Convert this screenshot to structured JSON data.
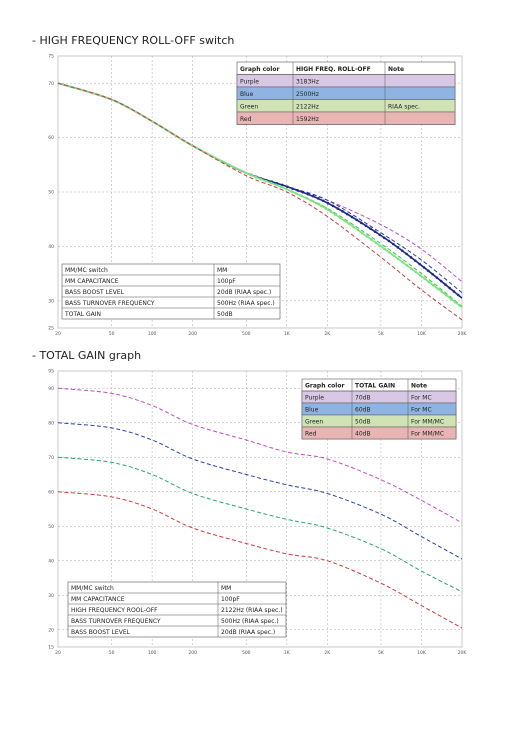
{
  "sections": [
    {
      "title": "- HIGH FREQUENCY ROLL-OFF switch"
    },
    {
      "title": "- TOTAL GAIN graph"
    }
  ],
  "chart_data": [
    {
      "type": "line",
      "xscale": "log",
      "xlim": [
        20,
        20000
      ],
      "ylim": [
        25,
        75
      ],
      "yticks": [
        25,
        30,
        40,
        50,
        60,
        70,
        75
      ],
      "xtick_labels": [
        "20",
        "50",
        "100",
        "200",
        "500",
        "1K",
        "2K",
        "5K",
        "10K",
        "20K"
      ],
      "xtick_values": [
        20,
        50,
        100,
        200,
        500,
        1000,
        2000,
        5000,
        10000,
        20000
      ],
      "grid": true,
      "legend_position": "top-right",
      "legend_table": {
        "headers": [
          "Graph color",
          "HIGH FREQ. ROLL-OFF",
          "Note"
        ],
        "rows": [
          {
            "color_name": "Purple",
            "value": "3183Hz",
            "note": "",
            "bg": "#d9c8e4"
          },
          {
            "color_name": "Blue",
            "value": "2500Hz",
            "note": "",
            "bg": "#8fb4e3"
          },
          {
            "color_name": "Green",
            "value": "2122Hz",
            "note": "RIAA spec.",
            "bg": "#cfe3b5"
          },
          {
            "color_name": "Red",
            "value": "1592Hz",
            "note": "",
            "bg": "#e8b4b4"
          }
        ]
      },
      "info_table": [
        [
          "MM/MC switch",
          "MM"
        ],
        [
          "MM CAPACITANCE",
          "100pF"
        ],
        [
          "BASS BOOST LEVEL",
          "20dB (RIAA spec.)"
        ],
        [
          "BASS TURNOVER FREQUENCY",
          "500Hz (RIAA spec.)"
        ],
        [
          "TOTAL GAIN",
          "50dB"
        ]
      ],
      "series": [
        {
          "color": "#c04ac8",
          "style": "dashed",
          "points": [
            [
              20,
              70
            ],
            [
              50,
              67
            ],
            [
              100,
              63
            ],
            [
              200,
              58.5
            ],
            [
              500,
              53.5
            ],
            [
              1000,
              51
            ],
            [
              2000,
              48.5
            ],
            [
              5000,
              44
            ],
            [
              10000,
              39.5
            ],
            [
              20000,
              33.5
            ]
          ]
        },
        {
          "color": "#2a3ea8",
          "style": "dashed",
          "points": [
            [
              20,
              70
            ],
            [
              50,
              67
            ],
            [
              100,
              63
            ],
            [
              200,
              58.5
            ],
            [
              500,
              53.5
            ],
            [
              1000,
              51
            ],
            [
              2000,
              48.5
            ],
            [
              5000,
              42.5
            ],
            [
              10000,
              37.5
            ],
            [
              20000,
              31.5
            ]
          ]
        },
        {
          "color": "#1f2a8a",
          "style": "solid-dots",
          "points": [
            [
              20,
              70
            ],
            [
              50,
              67
            ],
            [
              100,
              63
            ],
            [
              200,
              58.5
            ],
            [
              500,
              53.5
            ],
            [
              1000,
              51
            ],
            [
              2000,
              48
            ],
            [
              5000,
              42
            ],
            [
              10000,
              36.5
            ],
            [
              20000,
              30.5
            ]
          ]
        },
        {
          "color": "#3cbd55",
          "style": "dashed",
          "points": [
            [
              20,
              70
            ],
            [
              50,
              67
            ],
            [
              100,
              63
            ],
            [
              200,
              58.5
            ],
            [
              500,
              53.5
            ],
            [
              1000,
              50.5
            ],
            [
              2000,
              47
            ],
            [
              5000,
              40.5
            ],
            [
              10000,
              35
            ],
            [
              20000,
              29
            ]
          ]
        },
        {
          "color": "#7ee37e",
          "style": "solid-dots",
          "points": [
            [
              20,
              70
            ],
            [
              50,
              67
            ],
            [
              100,
              63
            ],
            [
              200,
              58.5
            ],
            [
              500,
              53.5
            ],
            [
              1000,
              50.5
            ],
            [
              2000,
              46.8
            ],
            [
              5000,
              40
            ],
            [
              10000,
              34.5
            ],
            [
              20000,
              28.8
            ]
          ]
        },
        {
          "color": "#d03a3a",
          "style": "dashed",
          "points": [
            [
              20,
              70
            ],
            [
              50,
              67
            ],
            [
              100,
              63
            ],
            [
              200,
              58.5
            ],
            [
              500,
              53
            ],
            [
              1000,
              50
            ],
            [
              2000,
              45.5
            ],
            [
              5000,
              38
            ],
            [
              10000,
              32
            ],
            [
              20000,
              26.5
            ]
          ]
        }
      ]
    },
    {
      "type": "line",
      "xscale": "log",
      "xlim": [
        20,
        20000
      ],
      "ylim": [
        15,
        95
      ],
      "yticks": [
        15,
        20,
        30,
        40,
        50,
        60,
        70,
        80,
        90,
        95
      ],
      "xtick_labels": [
        "20",
        "50",
        "100",
        "200",
        "500",
        "1K",
        "2K",
        "5K",
        "10K",
        "20K"
      ],
      "xtick_values": [
        20,
        50,
        100,
        200,
        500,
        1000,
        2000,
        5000,
        10000,
        20000
      ],
      "grid": true,
      "legend_position": "top-right",
      "legend_table": {
        "headers": [
          "Graph color",
          "TOTAL GAIN",
          "Note"
        ],
        "rows": [
          {
            "color_name": "Purple",
            "value": "70dB",
            "note": "For MC",
            "bg": "#d9c8e4"
          },
          {
            "color_name": "Blue",
            "value": "60dB",
            "note": "For MC",
            "bg": "#8fb4e3"
          },
          {
            "color_name": "Green",
            "value": "50dB",
            "note": "For MM/MC",
            "bg": "#cfe3b5"
          },
          {
            "color_name": "Red",
            "value": "40dB",
            "note": "For MM/MC",
            "bg": "#e8b4b4"
          }
        ]
      },
      "info_table": [
        [
          "MM/MC switch",
          "MM"
        ],
        [
          "MM CAPACITANCE",
          "100pF"
        ],
        [
          "HIGH FREQUENCY ROOL-OFF",
          "2122Hz (RIAA spec.)"
        ],
        [
          "BASS TURNOVER FREQUENCY",
          "500Hz (RIAA spec.)"
        ],
        [
          "BASS BOOST LEVEL",
          "20dB (RIAA spec.)"
        ]
      ],
      "series": [
        {
          "color": "#c04ac8",
          "style": "dashed",
          "points": [
            [
              20,
              90
            ],
            [
              50,
              88.5
            ],
            [
              100,
              85
            ],
            [
              200,
              79.5
            ],
            [
              500,
              75
            ],
            [
              1000,
              71.5
            ],
            [
              2000,
              69.5
            ],
            [
              5000,
              63.5
            ],
            [
              10000,
              57.5
            ],
            [
              20000,
              51
            ]
          ]
        },
        {
          "color": "#2a3ea8",
          "style": "dashed",
          "points": [
            [
              20,
              80
            ],
            [
              50,
              78.5
            ],
            [
              100,
              75
            ],
            [
              200,
              69.5
            ],
            [
              500,
              65
            ],
            [
              1000,
              62
            ],
            [
              2000,
              59.5
            ],
            [
              5000,
              53.5
            ],
            [
              10000,
              47
            ],
            [
              20000,
              40.5
            ]
          ]
        },
        {
          "color": "#26a66a",
          "style": "dashed",
          "points": [
            [
              20,
              70
            ],
            [
              50,
              68.5
            ],
            [
              100,
              65
            ],
            [
              200,
              59.5
            ],
            [
              500,
              55
            ],
            [
              1000,
              52
            ],
            [
              2000,
              49.5
            ],
            [
              5000,
              43.5
            ],
            [
              10000,
              37
            ],
            [
              20000,
              31
            ]
          ]
        },
        {
          "color": "#d03a3a",
          "style": "dashed",
          "points": [
            [
              20,
              60
            ],
            [
              50,
              58.5
            ],
            [
              100,
              55
            ],
            [
              200,
              49.5
            ],
            [
              500,
              45
            ],
            [
              1000,
              42
            ],
            [
              2000,
              40
            ],
            [
              5000,
              33.5
            ],
            [
              10000,
              27
            ],
            [
              20000,
              20.5
            ]
          ]
        }
      ]
    }
  ]
}
